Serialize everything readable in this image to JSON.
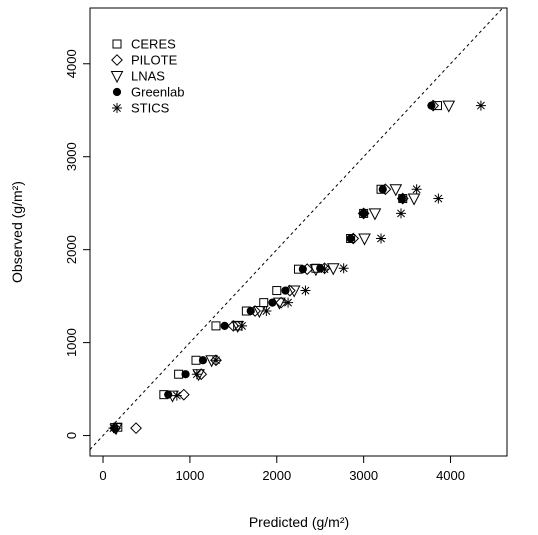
{
  "chart_data": {
    "type": "scatter",
    "xlabel": "Predicted (g/m²)",
    "ylabel": "Observed (g/m²)",
    "xlim": [
      -150,
      4650
    ],
    "ylim": [
      -220,
      4600
    ],
    "xticks": [
      "0",
      "1000",
      "2000",
      "3000",
      "4000"
    ],
    "yticks": [
      "0",
      "1000",
      "2000",
      "3000",
      "4000"
    ],
    "reference_line": "1:1 dashed",
    "grid": false,
    "legend_position": "top-left",
    "series": [
      {
        "name": "CERES",
        "marker": "square",
        "points": [
          [
            170,
            90
          ],
          [
            700,
            440
          ],
          [
            870,
            660
          ],
          [
            1070,
            810
          ],
          [
            1300,
            1180
          ],
          [
            1650,
            1340
          ],
          [
            1550,
            1180
          ],
          [
            1850,
            1430
          ],
          [
            2000,
            1560
          ],
          [
            2250,
            1790
          ],
          [
            2450,
            1800
          ],
          [
            2850,
            2120
          ],
          [
            3000,
            2390
          ],
          [
            3200,
            2650
          ],
          [
            3450,
            2550
          ],
          [
            3850,
            3550
          ]
        ]
      },
      {
        "name": "PILOTE",
        "marker": "diamond",
        "points": [
          [
            140,
            80
          ],
          [
            380,
            80
          ],
          [
            930,
            440
          ],
          [
            1130,
            660
          ],
          [
            1300,
            810
          ],
          [
            1500,
            1180
          ],
          [
            1750,
            1340
          ],
          [
            2050,
            1430
          ],
          [
            2150,
            1560
          ],
          [
            2350,
            1790
          ],
          [
            2550,
            1800
          ],
          [
            2880,
            2120
          ],
          [
            3000,
            2390
          ],
          [
            3250,
            2650
          ],
          [
            3450,
            2550
          ],
          [
            3800,
            3550
          ]
        ]
      },
      {
        "name": "LNAS",
        "marker": "triangle-down",
        "points": [
          [
            150,
            80
          ],
          [
            800,
            430
          ],
          [
            1100,
            660
          ],
          [
            1250,
            810
          ],
          [
            1550,
            1180
          ],
          [
            1800,
            1340
          ],
          [
            2030,
            1430
          ],
          [
            2200,
            1560
          ],
          [
            2450,
            1790
          ],
          [
            2650,
            1800
          ],
          [
            3010,
            2120
          ],
          [
            3130,
            2390
          ],
          [
            3580,
            2550
          ],
          [
            3370,
            2650
          ],
          [
            3980,
            3550
          ]
        ]
      },
      {
        "name": "Greenlab",
        "marker": "filled-circle",
        "points": [
          [
            130,
            80
          ],
          [
            750,
            440
          ],
          [
            950,
            660
          ],
          [
            1150,
            810
          ],
          [
            1400,
            1180
          ],
          [
            1700,
            1340
          ],
          [
            1950,
            1430
          ],
          [
            2100,
            1560
          ],
          [
            2300,
            1790
          ],
          [
            2500,
            1800
          ],
          [
            2850,
            2120
          ],
          [
            3000,
            2390
          ],
          [
            3220,
            2650
          ],
          [
            3440,
            2550
          ],
          [
            3780,
            3550
          ]
        ]
      },
      {
        "name": "STICS",
        "marker": "asterisk",
        "points": [
          [
            120,
            80
          ],
          [
            850,
            430
          ],
          [
            1080,
            660
          ],
          [
            1300,
            810
          ],
          [
            1600,
            1180
          ],
          [
            1880,
            1340
          ],
          [
            2130,
            1430
          ],
          [
            2330,
            1560
          ],
          [
            2550,
            1790
          ],
          [
            2770,
            1800
          ],
          [
            3200,
            2120
          ],
          [
            3430,
            2390
          ],
          [
            3610,
            2650
          ],
          [
            3860,
            2550
          ],
          [
            4350,
            3550
          ]
        ]
      }
    ]
  }
}
